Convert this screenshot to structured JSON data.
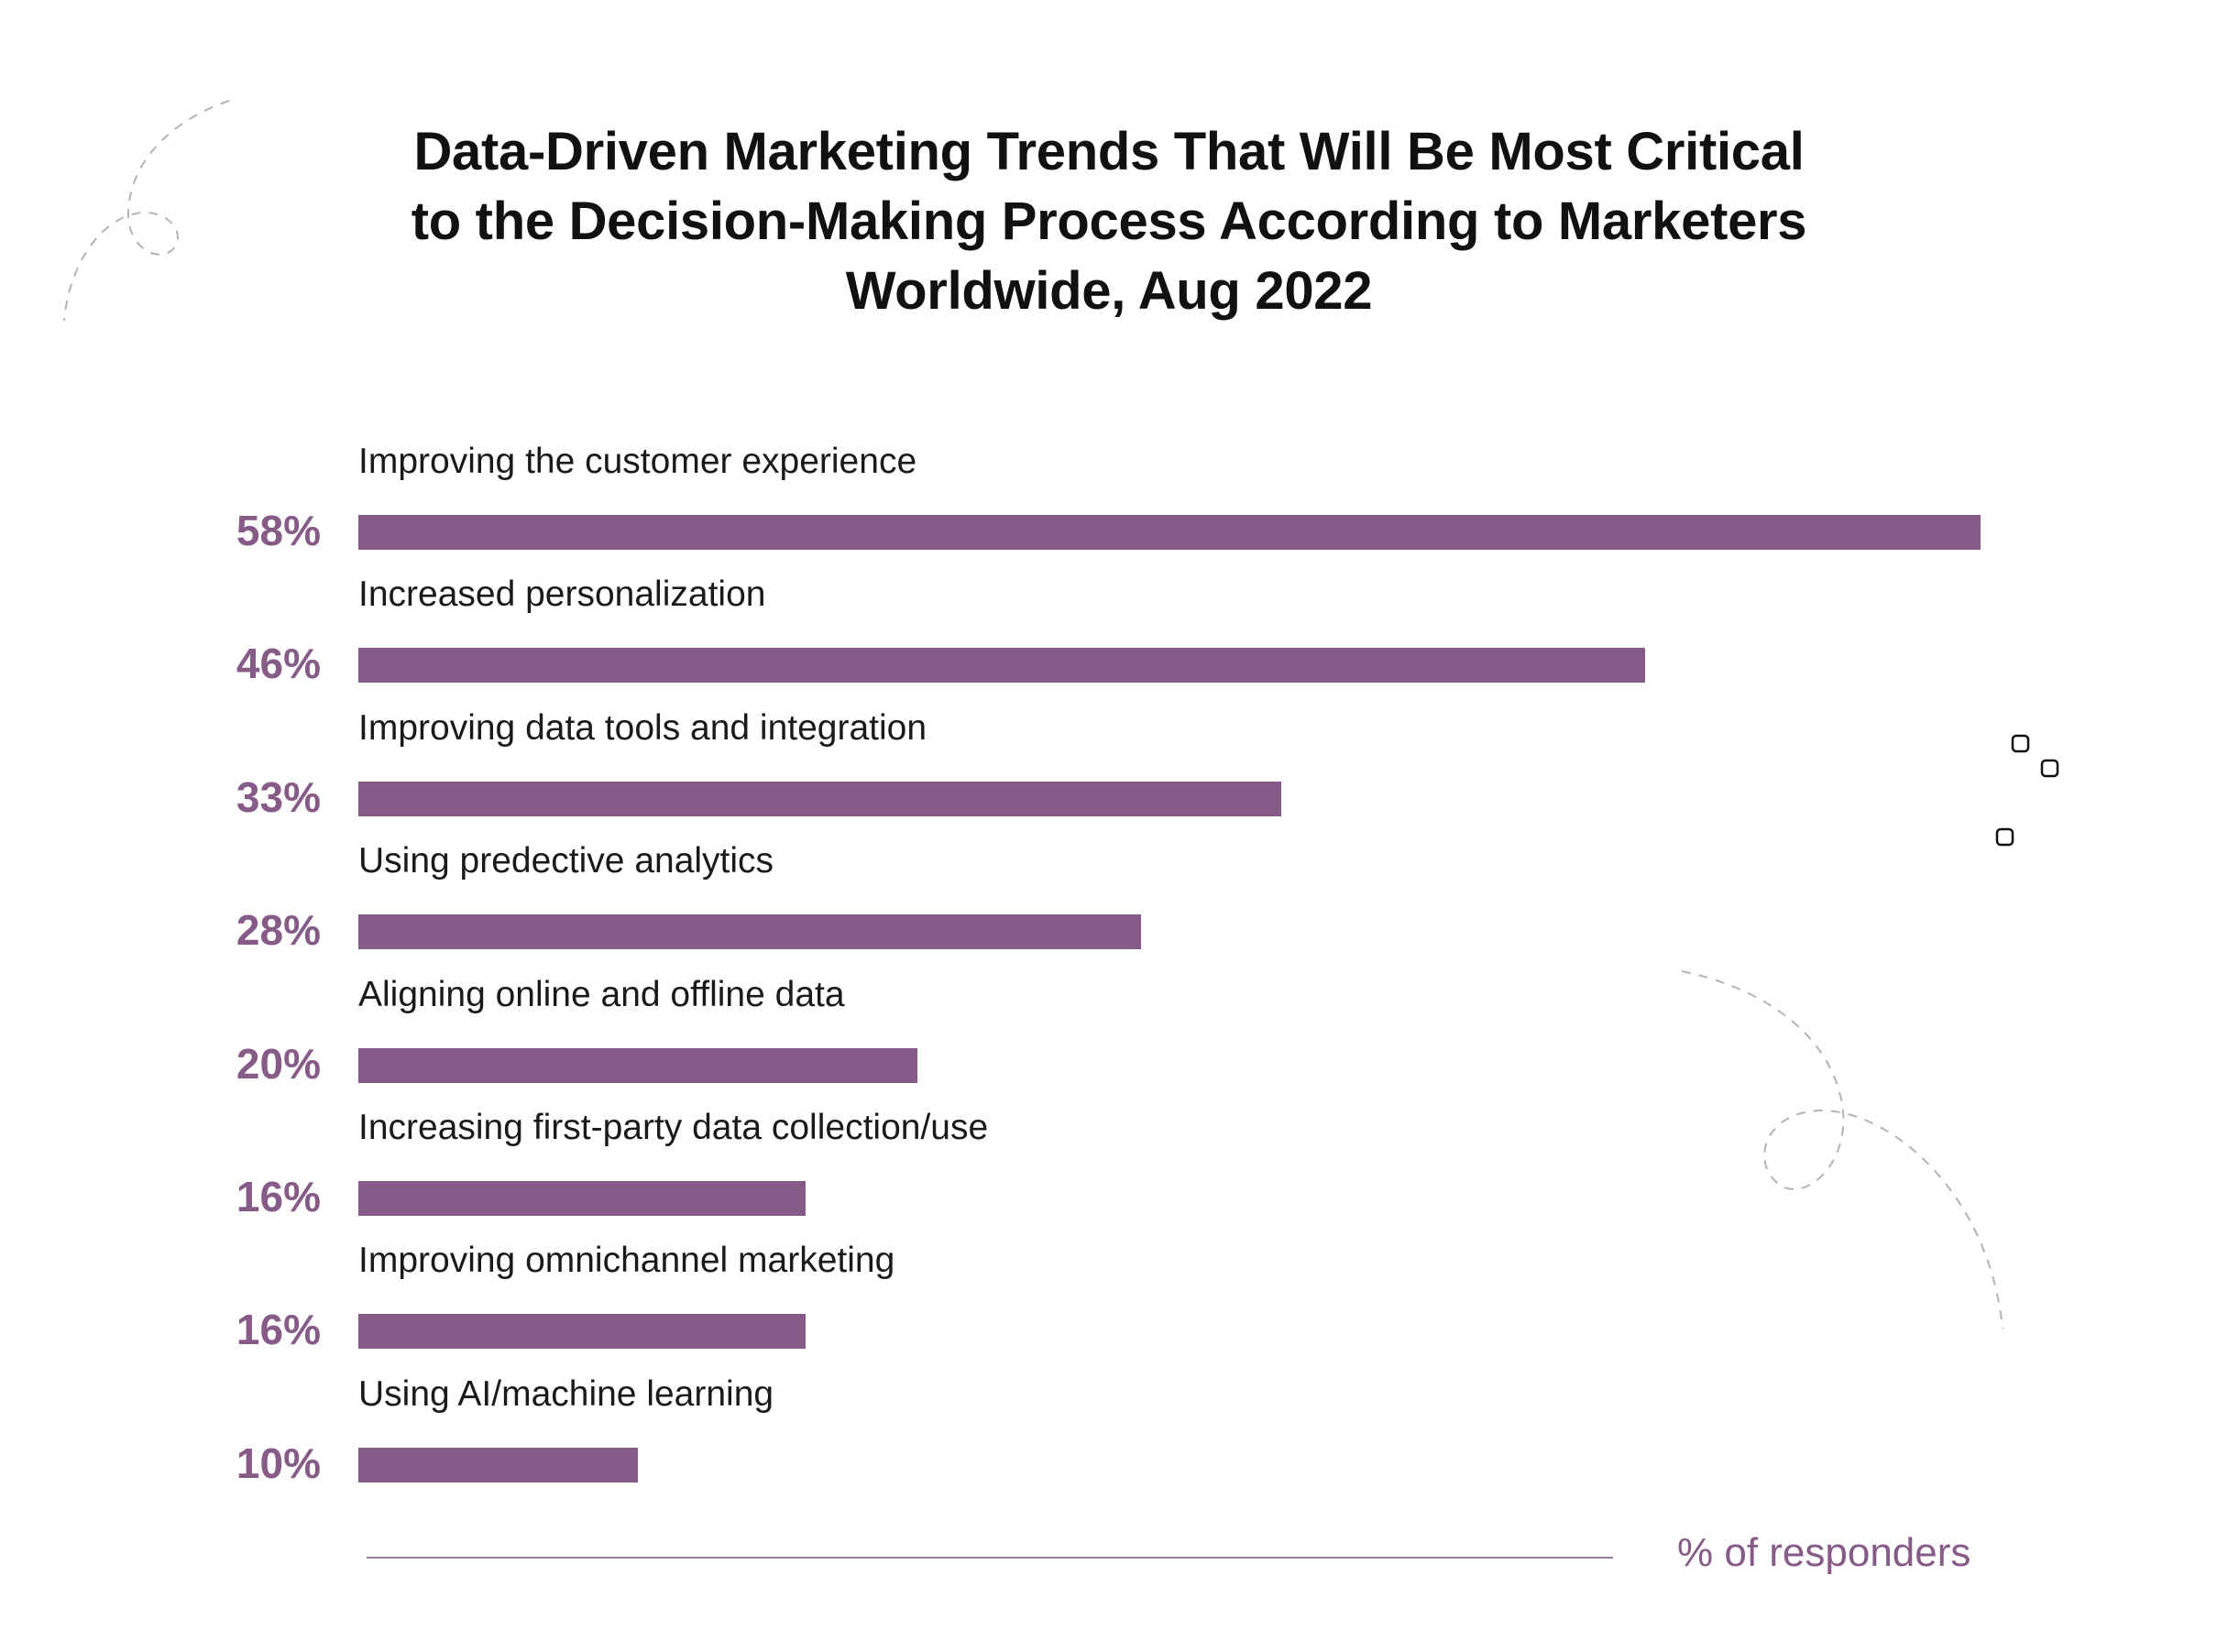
{
  "chart_data": {
    "type": "bar",
    "orientation": "horizontal",
    "title": "Data-Driven Marketing Trends That Will Be Most Critical to the Decision-Making Process According to Marketers Worldwide, Aug 2022",
    "title_lines": [
      "Data-Driven Marketing Trends That Will Be Most Critical",
      "to the Decision-Making Process According to Marketers",
      "Worldwide, Aug 2022"
    ],
    "categories": [
      "Improving the customer experience",
      "Increased personalization",
      "Improving data tools and integration",
      "Using predective analytics",
      "Aligning online and offline data",
      "Increasing first-party data collection/use",
      "Improving omnichannel marketing",
      "Using AI/machine learning"
    ],
    "values": [
      58,
      46,
      33,
      28,
      20,
      16,
      16,
      10
    ],
    "value_labels": [
      "58%",
      "46%",
      "33%",
      "28%",
      "20%",
      "16%",
      "16%",
      "10%"
    ],
    "xlabel": "% of responders",
    "xlim": [
      0,
      58
    ],
    "grid": false,
    "legend": "none",
    "bar_color": "#865b87"
  }
}
